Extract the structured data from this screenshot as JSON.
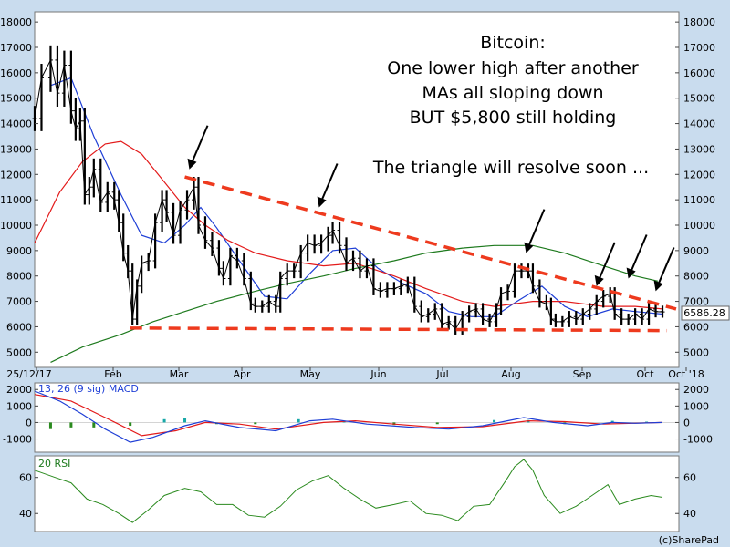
{
  "colors": {
    "background": "#c9dcee",
    "panel": "#ffffff",
    "price": "#000000",
    "ma_short": "#1f3fd6",
    "ma_mid": "#e31b1b",
    "ma_long": "#1e7a1e",
    "trendline": "#ee3a1e",
    "rsi": "#2a8a1e",
    "macd_hist": "#2a8a1e",
    "macd_hist_pos": "#18a8a8"
  },
  "annotation": {
    "lines": [
      "Bitcoin:",
      "One lower high after another",
      "MAs all sloping down",
      "BUT $5,800 still holding",
      "The triangle will resolve soon ..."
    ]
  },
  "footer": {
    "credit": "(c)SharePad"
  },
  "last_price_label": "6586.28",
  "chart_data": [
    {
      "type": "candlestick",
      "title": "",
      "x_ticks": [
        "25/12/17",
        "Feb",
        "Mar",
        "Apr",
        "May",
        "Jun",
        "Jul",
        "Aug",
        "Sep",
        "Oct",
        "Oct '18"
      ],
      "y_ticks": [
        5000,
        6000,
        7000,
        8000,
        9000,
        10000,
        11000,
        12000,
        13000,
        14000,
        15000,
        16000,
        17000,
        18000
      ],
      "ylim": [
        4400,
        18400
      ],
      "x_range": [
        "2017-12-25",
        "2018-10-01"
      ],
      "grid": false,
      "price_points": [
        [
          "2017-12-25",
          14200
        ],
        [
          "2017-12-28",
          15800
        ],
        [
          "2018-01-01",
          16500
        ],
        [
          "2018-01-04",
          15200
        ],
        [
          "2018-01-07",
          16300
        ],
        [
          "2018-01-10",
          14500
        ],
        [
          "2018-01-12",
          13800
        ],
        [
          "2018-01-14",
          14100
        ],
        [
          "2018-01-16",
          11200
        ],
        [
          "2018-01-18",
          11500
        ],
        [
          "2018-01-20",
          12200
        ],
        [
          "2018-01-23",
          10900
        ],
        [
          "2018-01-26",
          11300
        ],
        [
          "2018-01-29",
          11000
        ],
        [
          "2018-01-31",
          10100
        ],
        [
          "2018-02-02",
          8900
        ],
        [
          "2018-02-04",
          8200
        ],
        [
          "2018-02-06",
          6300
        ],
        [
          "2018-02-08",
          7600
        ],
        [
          "2018-02-10",
          8500
        ],
        [
          "2018-02-13",
          8600
        ],
        [
          "2018-02-16",
          10100
        ],
        [
          "2018-02-19",
          11000
        ],
        [
          "2018-02-21",
          10500
        ],
        [
          "2018-02-24",
          9600
        ],
        [
          "2018-02-27",
          10600
        ],
        [
          "2018-03-02",
          11000
        ],
        [
          "2018-03-05",
          11500
        ],
        [
          "2018-03-07",
          10000
        ],
        [
          "2018-03-10",
          9400
        ],
        [
          "2018-03-13",
          9100
        ],
        [
          "2018-03-16",
          8300
        ],
        [
          "2018-03-18",
          7900
        ],
        [
          "2018-03-21",
          8800
        ],
        [
          "2018-03-24",
          8600
        ],
        [
          "2018-03-27",
          7900
        ],
        [
          "2018-03-30",
          6900
        ],
        [
          "2018-04-01",
          6800
        ],
        [
          "2018-04-04",
          6800
        ],
        [
          "2018-04-07",
          7000
        ],
        [
          "2018-04-10",
          6800
        ],
        [
          "2018-04-12",
          7900
        ],
        [
          "2018-04-15",
          8200
        ],
        [
          "2018-04-18",
          8200
        ],
        [
          "2018-04-21",
          8900
        ],
        [
          "2018-04-24",
          9300
        ],
        [
          "2018-04-27",
          9200
        ],
        [
          "2018-04-30",
          9300
        ],
        [
          "2018-05-03",
          9600
        ],
        [
          "2018-05-05",
          9800
        ],
        [
          "2018-05-08",
          9200
        ],
        [
          "2018-05-11",
          8500
        ],
        [
          "2018-05-14",
          8700
        ],
        [
          "2018-05-17",
          8200
        ],
        [
          "2018-05-20",
          8400
        ],
        [
          "2018-05-23",
          7500
        ],
        [
          "2018-05-26",
          7400
        ],
        [
          "2018-05-29",
          7500
        ],
        [
          "2018-06-01",
          7500
        ],
        [
          "2018-06-04",
          7600
        ],
        [
          "2018-06-07",
          7700
        ],
        [
          "2018-06-10",
          6800
        ],
        [
          "2018-06-13",
          6400
        ],
        [
          "2018-06-16",
          6500
        ],
        [
          "2018-06-19",
          6700
        ],
        [
          "2018-06-22",
          6100
        ],
        [
          "2018-06-25",
          6200
        ],
        [
          "2018-06-28",
          5900
        ],
        [
          "2018-07-01",
          6400
        ],
        [
          "2018-07-04",
          6600
        ],
        [
          "2018-07-07",
          6700
        ],
        [
          "2018-07-10",
          6300
        ],
        [
          "2018-07-13",
          6200
        ],
        [
          "2018-07-16",
          6700
        ],
        [
          "2018-07-18",
          7300
        ],
        [
          "2018-07-21",
          7400
        ],
        [
          "2018-07-24",
          8200
        ],
        [
          "2018-07-27",
          8200
        ],
        [
          "2018-07-30",
          8200
        ],
        [
          "2018-08-01",
          7600
        ],
        [
          "2018-08-04",
          7000
        ],
        [
          "2018-08-07",
          6900
        ],
        [
          "2018-08-09",
          6300
        ],
        [
          "2018-08-11",
          6200
        ],
        [
          "2018-08-14",
          6200
        ],
        [
          "2018-08-17",
          6400
        ],
        [
          "2018-08-20",
          6300
        ],
        [
          "2018-08-23",
          6500
        ],
        [
          "2018-08-26",
          6700
        ],
        [
          "2018-08-29",
          7000
        ],
        [
          "2018-09-01",
          7200
        ],
        [
          "2018-09-04",
          7300
        ],
        [
          "2018-09-06",
          6500
        ],
        [
          "2018-09-09",
          6300
        ],
        [
          "2018-09-12",
          6300
        ],
        [
          "2018-09-15",
          6500
        ],
        [
          "2018-09-18",
          6300
        ],
        [
          "2018-09-21",
          6700
        ],
        [
          "2018-09-24",
          6600
        ],
        [
          "2018-09-27",
          6586
        ]
      ],
      "moving_averages": [
        {
          "name": "",
          "color": "#1f3fd6",
          "points": [
            [
              "2018-01-01",
              15500
            ],
            [
              "2018-01-10",
              15800
            ],
            [
              "2018-01-20",
              13500
            ],
            [
              "2018-02-01",
              11200
            ],
            [
              "2018-02-10",
              9600
            ],
            [
              "2018-02-20",
              9300
            ],
            [
              "2018-03-01",
              10000
            ],
            [
              "2018-03-08",
              10700
            ],
            [
              "2018-03-15",
              9900
            ],
            [
              "2018-03-25",
              8600
            ],
            [
              "2018-04-05",
              7200
            ],
            [
              "2018-04-15",
              7100
            ],
            [
              "2018-04-25",
              8100
            ],
            [
              "2018-05-05",
              9000
            ],
            [
              "2018-05-15",
              9100
            ],
            [
              "2018-05-25",
              8300
            ],
            [
              "2018-06-05",
              7700
            ],
            [
              "2018-06-15",
              7300
            ],
            [
              "2018-06-25",
              6600
            ],
            [
              "2018-07-05",
              6400
            ],
            [
              "2018-07-15",
              6400
            ],
            [
              "2018-07-25",
              7000
            ],
            [
              "2018-08-05",
              7600
            ],
            [
              "2018-08-15",
              6800
            ],
            [
              "2018-08-25",
              6400
            ],
            [
              "2018-09-05",
              6700
            ],
            [
              "2018-09-15",
              6600
            ],
            [
              "2018-09-27",
              6500
            ]
          ]
        },
        {
          "name": "",
          "color": "#e31b1b",
          "points": [
            [
              "2017-12-25",
              9300
            ],
            [
              "2018-01-05",
              11300
            ],
            [
              "2018-01-15",
              12500
            ],
            [
              "2018-01-25",
              13200
            ],
            [
              "2018-02-01",
              13300
            ],
            [
              "2018-02-10",
              12800
            ],
            [
              "2018-02-20",
              11700
            ],
            [
              "2018-03-01",
              10700
            ],
            [
              "2018-03-10",
              10000
            ],
            [
              "2018-03-20",
              9400
            ],
            [
              "2018-04-01",
              8900
            ],
            [
              "2018-04-15",
              8600
            ],
            [
              "2018-05-01",
              8400
            ],
            [
              "2018-05-15",
              8500
            ],
            [
              "2018-06-01",
              8000
            ],
            [
              "2018-06-15",
              7500
            ],
            [
              "2018-07-01",
              7000
            ],
            [
              "2018-07-15",
              6800
            ],
            [
              "2018-08-01",
              7000
            ],
            [
              "2018-08-15",
              7000
            ],
            [
              "2018-09-01",
              6800
            ],
            [
              "2018-09-15",
              6800
            ],
            [
              "2018-09-27",
              6700
            ]
          ]
        },
        {
          "name": "",
          "color": "#1e7a1e",
          "points": [
            [
              "2018-01-01",
              4600
            ],
            [
              "2018-01-15",
              5200
            ],
            [
              "2018-02-01",
              5700
            ],
            [
              "2018-02-15",
              6200
            ],
            [
              "2018-03-01",
              6600
            ],
            [
              "2018-03-15",
              7000
            ],
            [
              "2018-04-01",
              7400
            ],
            [
              "2018-04-15",
              7700
            ],
            [
              "2018-05-01",
              8000
            ],
            [
              "2018-05-15",
              8300
            ],
            [
              "2018-06-01",
              8600
            ],
            [
              "2018-06-15",
              8900
            ],
            [
              "2018-07-01",
              9100
            ],
            [
              "2018-07-15",
              9200
            ],
            [
              "2018-08-01",
              9200
            ],
            [
              "2018-08-15",
              8900
            ],
            [
              "2018-09-01",
              8400
            ],
            [
              "2018-09-15",
              8000
            ],
            [
              "2018-09-25",
              7800
            ]
          ]
        }
      ],
      "trendlines": [
        {
          "from": [
            "2018-03-01",
            11900
          ],
          "to": [
            "2018-10-03",
            6700
          ]
        },
        {
          "from": [
            "2018-02-05",
            5950
          ],
          "to": [
            "2018-09-29",
            5850
          ]
        }
      ],
      "arrows_at": [
        [
          "2018-03-03",
          12200
        ],
        [
          "2018-04-29",
          10700
        ],
        [
          "2018-07-29",
          8900
        ],
        [
          "2018-08-29",
          7600
        ],
        [
          "2018-09-12",
          7900
        ],
        [
          "2018-09-24",
          7400
        ]
      ]
    },
    {
      "type": "line",
      "title": "13, 26 (9 sig) MACD",
      "y_ticks": [
        -1000,
        0,
        1000,
        2000
      ],
      "ylim": [
        -1800,
        2400
      ],
      "macd": [
        [
          "2017-12-25",
          1900
        ],
        [
          "2018-01-05",
          1300
        ],
        [
          "2018-01-15",
          500
        ],
        [
          "2018-01-25",
          -400
        ],
        [
          "2018-02-05",
          -1200
        ],
        [
          "2018-02-15",
          -900
        ],
        [
          "2018-03-01",
          -200
        ],
        [
          "2018-03-10",
          100
        ],
        [
          "2018-03-25",
          -300
        ],
        [
          "2018-04-10",
          -500
        ],
        [
          "2018-04-25",
          100
        ],
        [
          "2018-05-05",
          200
        ],
        [
          "2018-05-20",
          -100
        ],
        [
          "2018-06-10",
          -300
        ],
        [
          "2018-06-25",
          -400
        ],
        [
          "2018-07-10",
          -200
        ],
        [
          "2018-07-28",
          300
        ],
        [
          "2018-08-10",
          0
        ],
        [
          "2018-08-25",
          -200
        ],
        [
          "2018-09-05",
          0
        ],
        [
          "2018-09-15",
          -50
        ],
        [
          "2018-09-27",
          0
        ]
      ],
      "signal": [
        [
          "2017-12-25",
          1700
        ],
        [
          "2018-01-10",
          1300
        ],
        [
          "2018-01-25",
          300
        ],
        [
          "2018-02-10",
          -800
        ],
        [
          "2018-02-25",
          -500
        ],
        [
          "2018-03-10",
          0
        ],
        [
          "2018-03-25",
          -100
        ],
        [
          "2018-04-10",
          -400
        ],
        [
          "2018-05-01",
          0
        ],
        [
          "2018-05-15",
          100
        ],
        [
          "2018-06-01",
          -100
        ],
        [
          "2018-06-20",
          -300
        ],
        [
          "2018-07-10",
          -250
        ],
        [
          "2018-07-30",
          100
        ],
        [
          "2018-08-15",
          50
        ],
        [
          "2018-09-01",
          -100
        ],
        [
          "2018-09-27",
          0
        ]
      ],
      "histogram": [
        [
          "2018-01-01",
          -400
        ],
        [
          "2018-01-10",
          -300
        ],
        [
          "2018-01-20",
          -300
        ],
        [
          "2018-02-05",
          -200
        ],
        [
          "2018-02-20",
          200
        ],
        [
          "2018-03-01",
          300
        ],
        [
          "2018-03-15",
          -100
        ],
        [
          "2018-04-01",
          -100
        ],
        [
          "2018-04-20",
          200
        ],
        [
          "2018-05-10",
          100
        ],
        [
          "2018-06-01",
          -150
        ],
        [
          "2018-06-20",
          -100
        ],
        [
          "2018-07-15",
          150
        ],
        [
          "2018-07-30",
          150
        ],
        [
          "2018-08-15",
          -100
        ],
        [
          "2018-09-05",
          100
        ],
        [
          "2018-09-20",
          50
        ]
      ]
    },
    {
      "type": "line",
      "title": "20 RSI",
      "y_ticks": [
        40,
        60
      ],
      "ylim": [
        30,
        72
      ],
      "values": [
        [
          "2017-12-25",
          64
        ],
        [
          "2018-01-03",
          60
        ],
        [
          "2018-01-10",
          57
        ],
        [
          "2018-01-17",
          48
        ],
        [
          "2018-01-24",
          45
        ],
        [
          "2018-01-31",
          40
        ],
        [
          "2018-02-06",
          35
        ],
        [
          "2018-02-13",
          42
        ],
        [
          "2018-02-20",
          50
        ],
        [
          "2018-03-01",
          54
        ],
        [
          "2018-03-08",
          52
        ],
        [
          "2018-03-15",
          45
        ],
        [
          "2018-03-22",
          45
        ],
        [
          "2018-03-29",
          39
        ],
        [
          "2018-04-05",
          38
        ],
        [
          "2018-04-12",
          44
        ],
        [
          "2018-04-19",
          53
        ],
        [
          "2018-04-26",
          58
        ],
        [
          "2018-05-03",
          61
        ],
        [
          "2018-05-10",
          54
        ],
        [
          "2018-05-17",
          48
        ],
        [
          "2018-05-24",
          43
        ],
        [
          "2018-06-01",
          45
        ],
        [
          "2018-06-08",
          47
        ],
        [
          "2018-06-15",
          40
        ],
        [
          "2018-06-22",
          39
        ],
        [
          "2018-06-29",
          36
        ],
        [
          "2018-07-06",
          44
        ],
        [
          "2018-07-13",
          45
        ],
        [
          "2018-07-20",
          58
        ],
        [
          "2018-07-24",
          66
        ],
        [
          "2018-07-28",
          70
        ],
        [
          "2018-08-01",
          64
        ],
        [
          "2018-08-06",
          50
        ],
        [
          "2018-08-13",
          40
        ],
        [
          "2018-08-20",
          44
        ],
        [
          "2018-08-27",
          50
        ],
        [
          "2018-09-03",
          56
        ],
        [
          "2018-09-08",
          45
        ],
        [
          "2018-09-15",
          48
        ],
        [
          "2018-09-22",
          50
        ],
        [
          "2018-09-27",
          49
        ]
      ]
    }
  ]
}
